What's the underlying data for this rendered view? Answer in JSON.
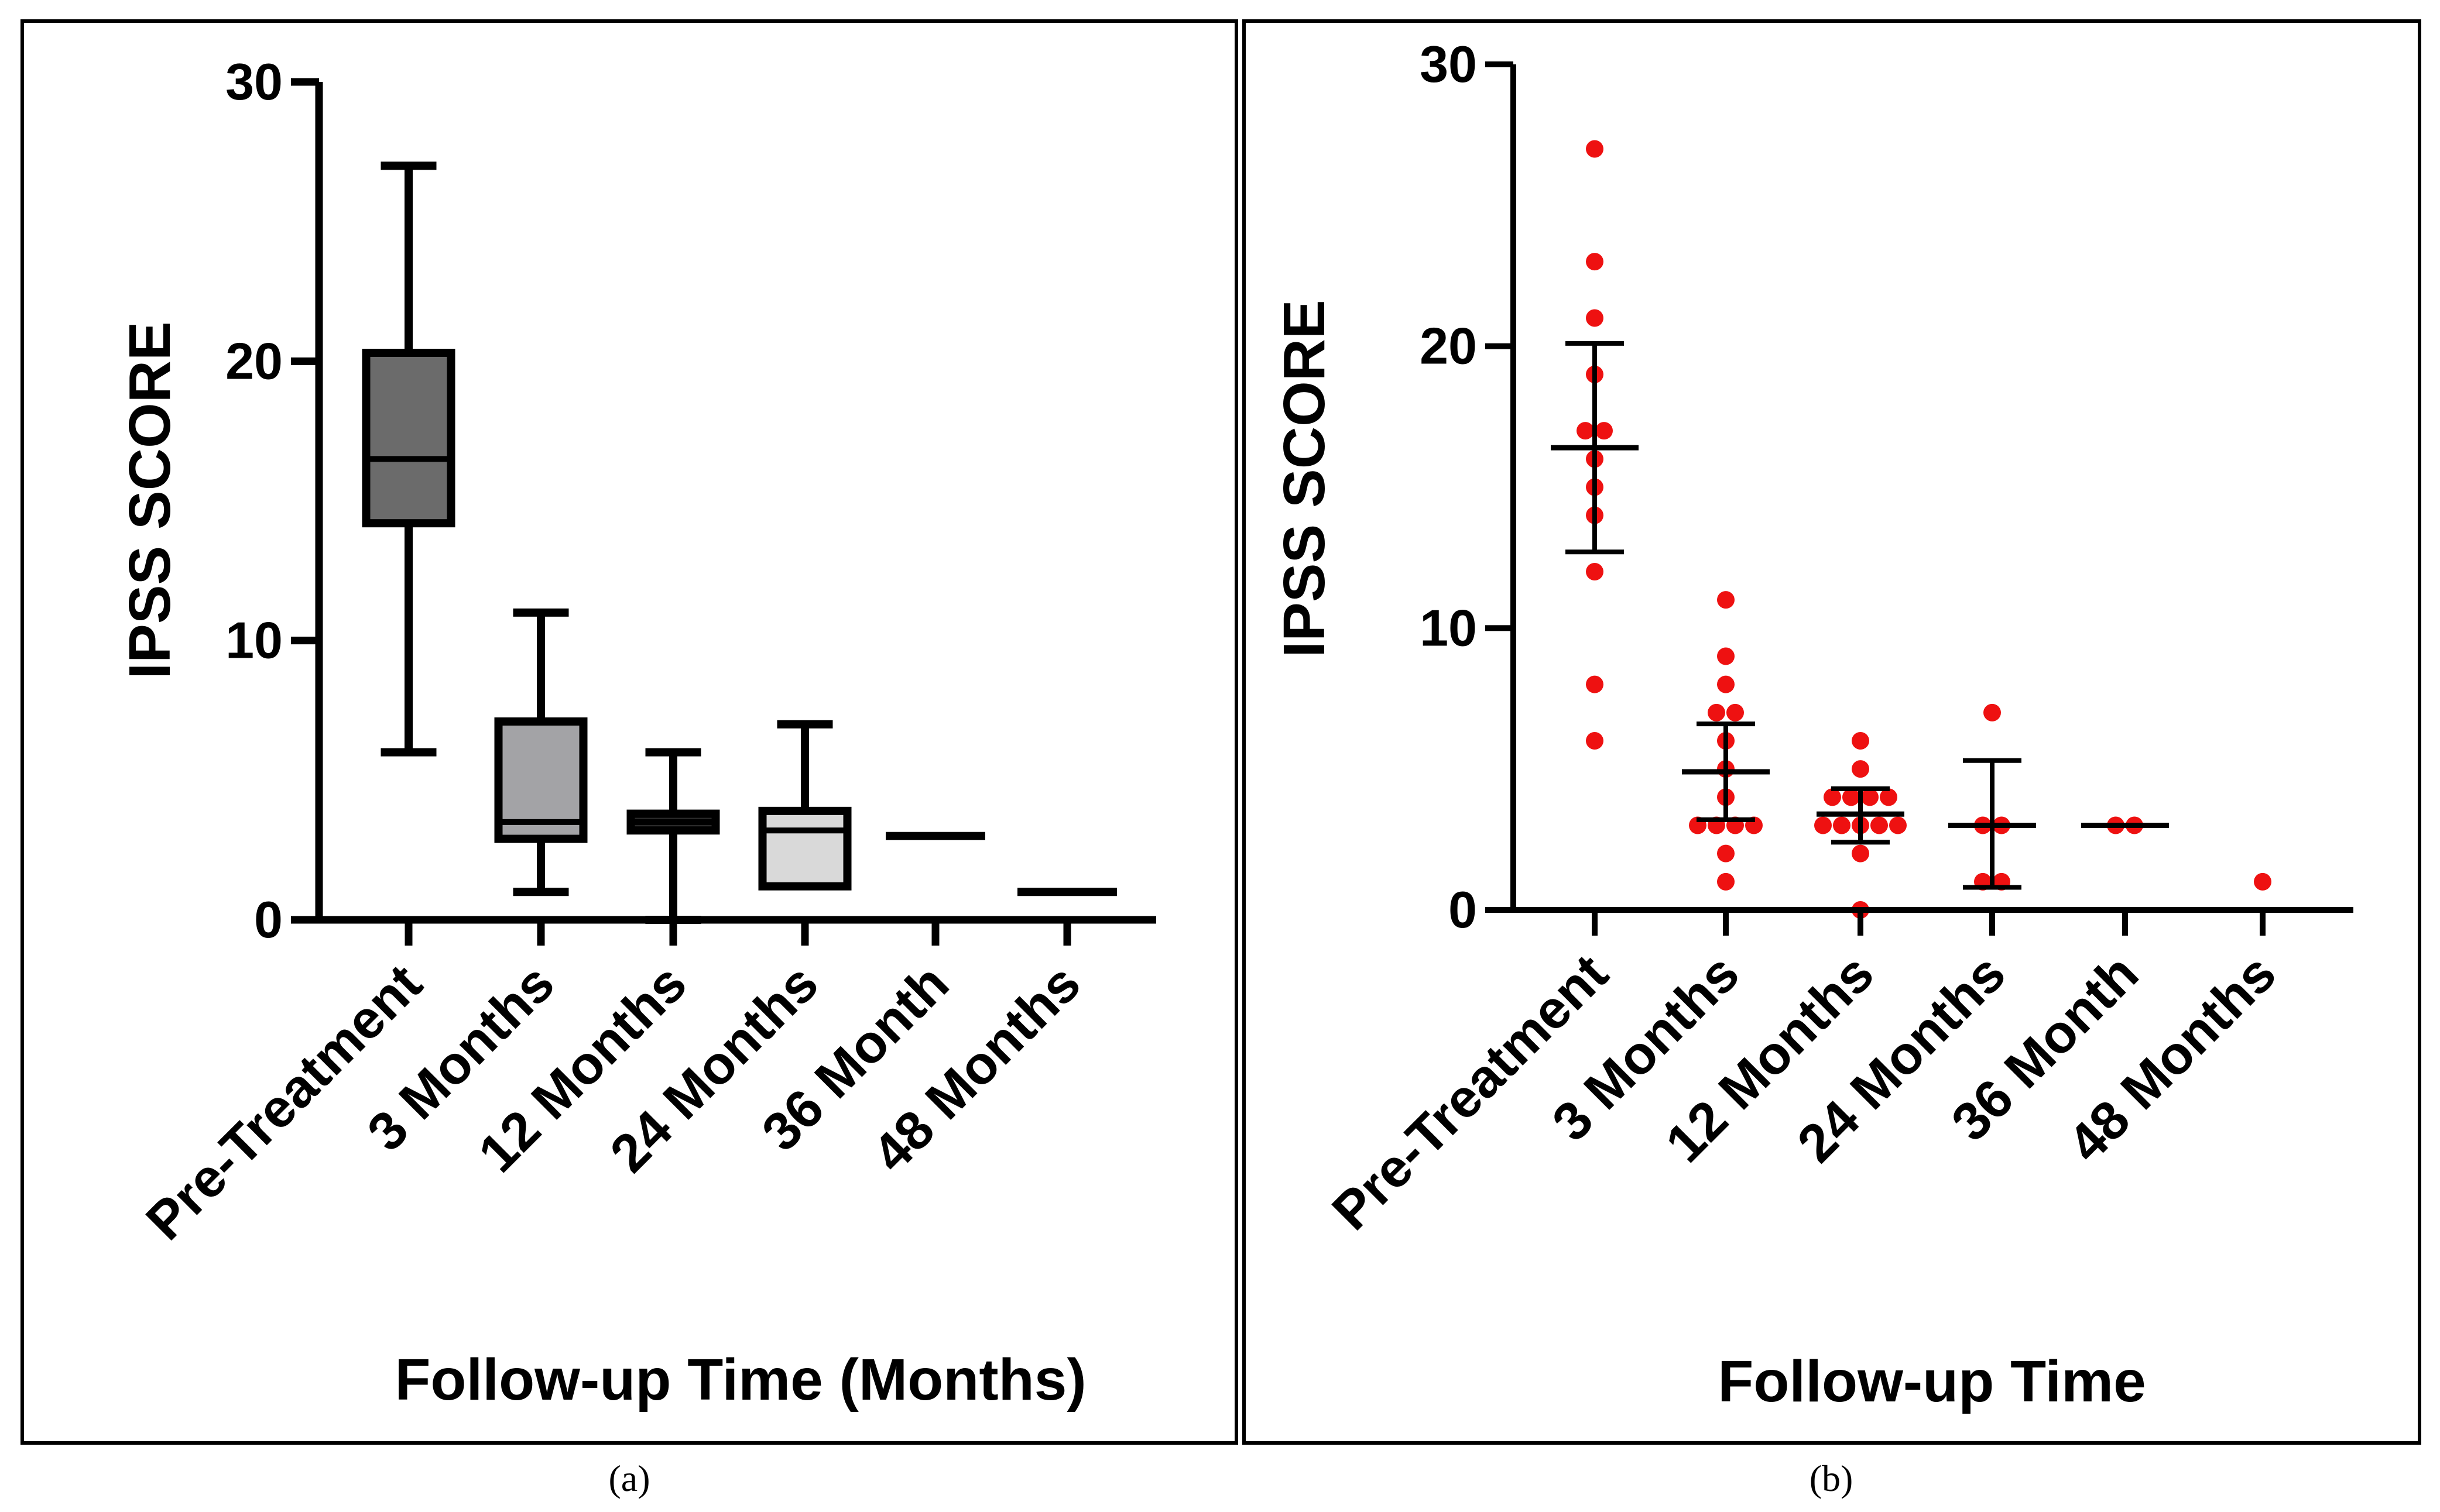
{
  "figure": {
    "panel_labels": [
      "(a)",
      "(b)"
    ]
  },
  "chart_data": [
    {
      "type": "box",
      "panel": "a",
      "xlabel": "Follow-up Time (Months)",
      "ylabel": "IPSS SCORE",
      "ylim": [
        0,
        30
      ],
      "yticks": [
        0,
        10,
        20,
        30
      ],
      "grid": false,
      "categories": [
        "Pre-Treatment",
        "3 Months",
        "12 Months",
        "24 Months",
        "36 Month",
        "48 Months"
      ],
      "boxes": [
        {
          "min": 6,
          "q1": 14.2,
          "median": 16.5,
          "q3": 20.3,
          "max": 27,
          "fill": "#6b6b6b"
        },
        {
          "min": 1,
          "q1": 2.9,
          "median": 3.5,
          "q3": 7.1,
          "max": 11,
          "fill": "#a3a3a6"
        },
        {
          "min": 0,
          "q1": 3.2,
          "median": 3.5,
          "q3": 3.8,
          "max": 6,
          "fill": "#2a2a2a"
        },
        {
          "min": 1.2,
          "q1": 1.2,
          "median": 3.2,
          "q3": 3.9,
          "max": 7,
          "fill": "#d9d9d9"
        },
        {
          "min": 3,
          "q1": 3,
          "median": 3,
          "q3": 3,
          "max": 3,
          "fill": "#ffffff"
        },
        {
          "min": 1,
          "q1": 1,
          "median": 1,
          "q3": 1,
          "max": 1,
          "fill": "#ffffff"
        }
      ]
    },
    {
      "type": "scatter",
      "panel": "b",
      "xlabel": "Follow-up Time",
      "ylabel": "IPSS SCORE",
      "ylim": [
        0,
        30
      ],
      "yticks": [
        0,
        10,
        20,
        30
      ],
      "grid": false,
      "point_color": "#ee1111",
      "categories": [
        "Pre-Treatment",
        "3 Months",
        "12 Months",
        "24 Months",
        "36 Month",
        "48 Months"
      ],
      "groups": [
        {
          "points": [
            27,
            23,
            21,
            19,
            17,
            17,
            16,
            15,
            14,
            12,
            8,
            6
          ],
          "mean": 16.4,
          "err_low": 12.7,
          "err_high": 20.1
        },
        {
          "points": [
            11,
            9,
            8,
            7,
            7,
            6,
            5,
            4,
            3,
            3,
            3,
            3,
            2,
            1
          ],
          "mean": 4.9,
          "err_low": 3.2,
          "err_high": 6.6
        },
        {
          "points": [
            6,
            5,
            4,
            4,
            4,
            4,
            3,
            3,
            3,
            3,
            3,
            2,
            0
          ],
          "mean": 3.4,
          "err_low": 2.4,
          "err_high": 4.3
        },
        {
          "points": [
            7,
            3,
            3,
            1,
            1
          ],
          "mean": 3.0,
          "err_low": 0.8,
          "err_high": 5.3
        },
        {
          "points": [
            3,
            3
          ],
          "mean": 3.0,
          "err_low": 3.0,
          "err_high": 3.0
        },
        {
          "points": [
            1
          ],
          "mean": null,
          "err_low": null,
          "err_high": null
        }
      ]
    }
  ]
}
